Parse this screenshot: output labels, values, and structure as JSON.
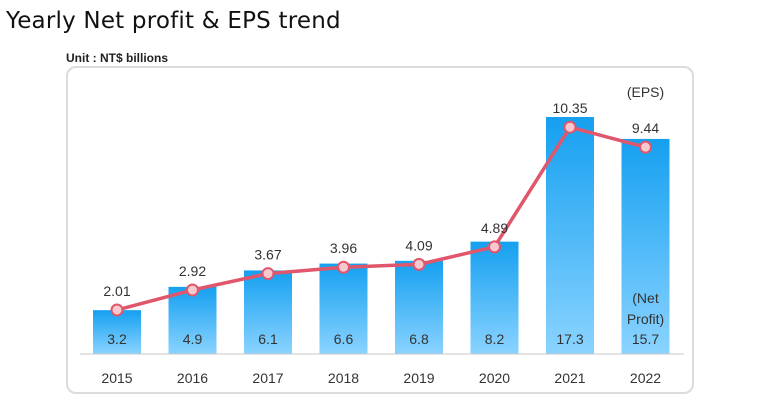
{
  "header": {
    "title": "Yearly Net profit & EPS trend",
    "unit": "Unit : NT$ billions"
  },
  "chart_data": {
    "type": "bar",
    "categories": [
      "2015",
      "2016",
      "2017",
      "2018",
      "2019",
      "2020",
      "2021",
      "2022"
    ],
    "series": [
      {
        "name": "Net Profit",
        "type": "bar",
        "values": [
          3.2,
          4.9,
          6.1,
          6.6,
          6.8,
          8.2,
          17.3,
          15.7
        ],
        "color": "#2aa3ee"
      },
      {
        "name": "EPS",
        "type": "line",
        "values": [
          2.01,
          2.92,
          3.67,
          3.96,
          4.09,
          4.89,
          10.35,
          9.44
        ],
        "color": "#e0566b"
      }
    ],
    "legend_labels": {
      "eps": "(EPS)",
      "net_profit": [
        "(Net",
        "Profit)"
      ]
    },
    "bar_ylim": [
      0,
      20
    ],
    "eps_ylim": [
      0,
      11.5
    ],
    "grid": false,
    "bar_gradient": [
      "#15a0f0",
      "#8ad3ff"
    ],
    "marker_fill": "#f6c9cf",
    "axis_color": "#c8c8c8"
  }
}
